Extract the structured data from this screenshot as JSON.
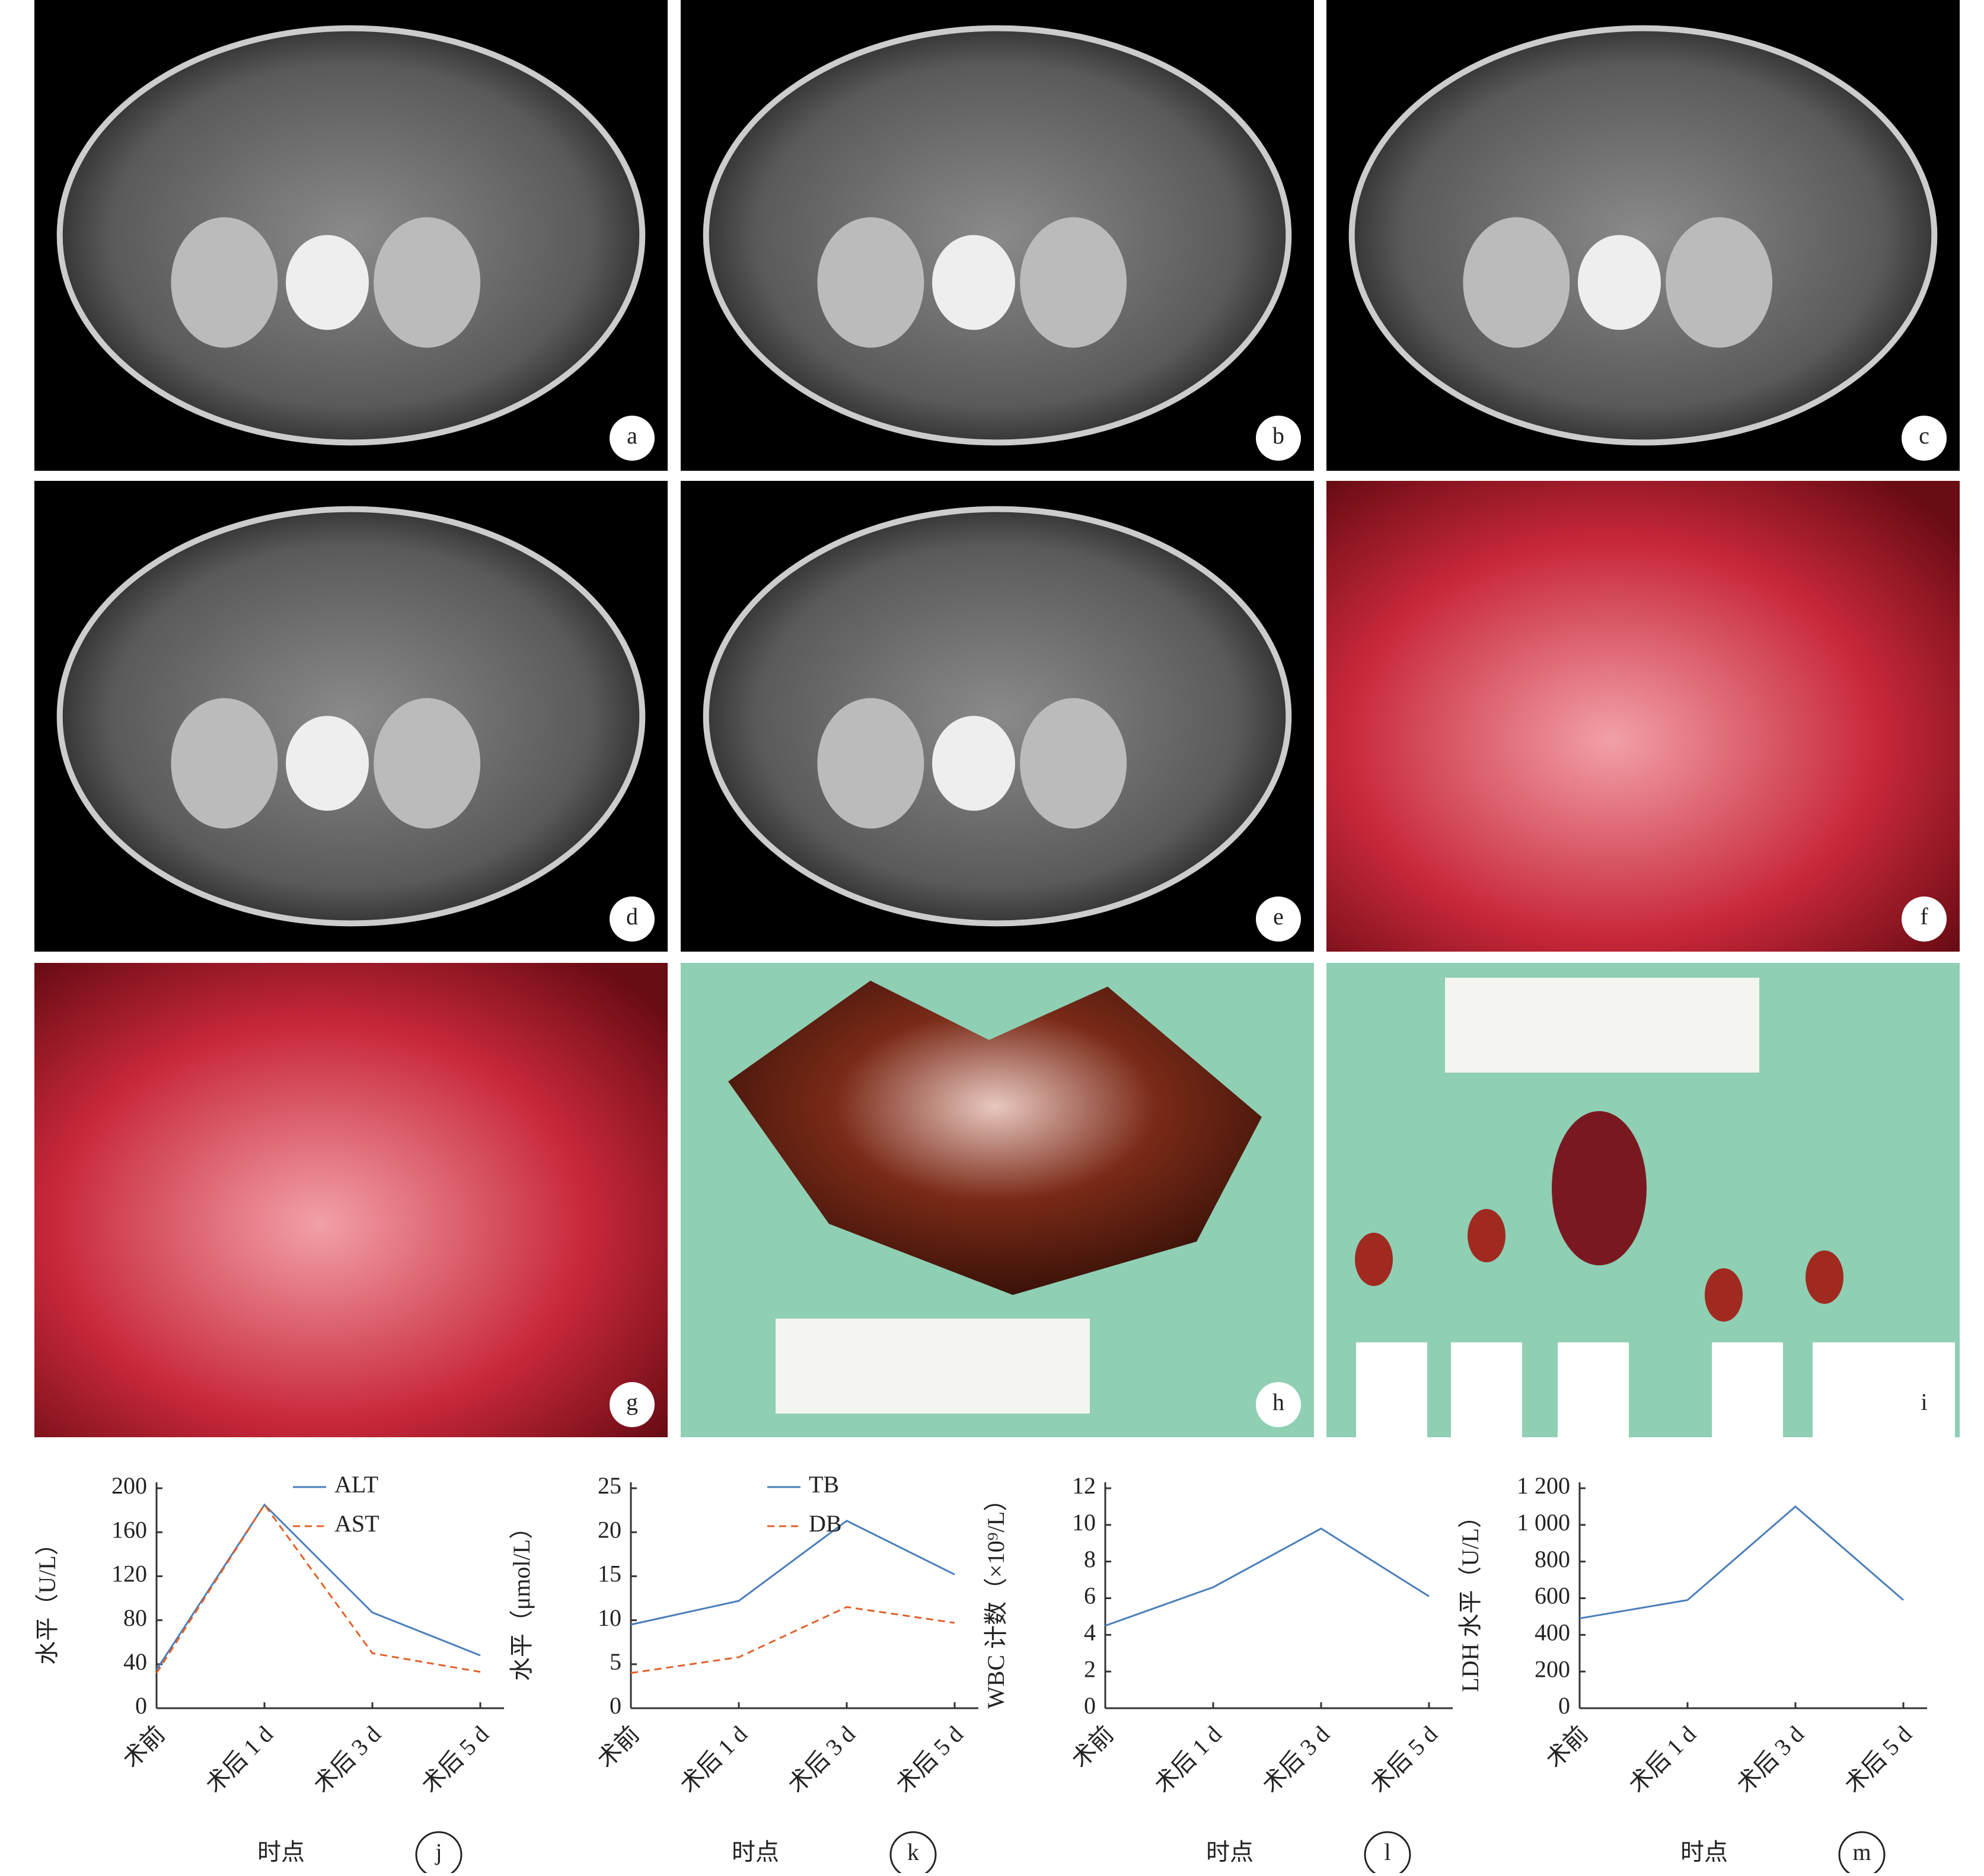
{
  "panels": [
    {
      "label": "a"
    },
    {
      "label": "b"
    },
    {
      "label": "c"
    },
    {
      "label": "d"
    },
    {
      "label": "e"
    },
    {
      "label": "f"
    },
    {
      "label": "g"
    },
    {
      "label": "h"
    },
    {
      "label": "i"
    }
  ],
  "chart_data": [
    {
      "type": "line",
      "panel_label": "j",
      "y_label": "水平（U/L）",
      "x_label": "时点",
      "categories": [
        "术前",
        "术后 1 d",
        "术后 3 d",
        "术后 5 d"
      ],
      "series": [
        {
          "name": "ALT",
          "color": "#4a7ebb",
          "dash": false,
          "values": [
            35,
            185,
            87,
            48
          ]
        },
        {
          "name": "AST",
          "color": "#e0622a",
          "dash": true,
          "values": [
            32,
            185,
            50,
            33
          ]
        }
      ],
      "ylim": [
        0,
        200
      ],
      "yticks": [
        0,
        40,
        80,
        120,
        160,
        200
      ]
    },
    {
      "type": "line",
      "panel_label": "k",
      "y_label": "水平（μmol/L）",
      "x_label": "时点",
      "categories": [
        "术前",
        "术后 1 d",
        "术后 3 d",
        "术后 5 d"
      ],
      "series": [
        {
          "name": "TB",
          "color": "#4a7ebb",
          "dash": false,
          "values": [
            9.5,
            12.2,
            21.3,
            15.2
          ]
        },
        {
          "name": "DB",
          "color": "#e0622a",
          "dash": true,
          "values": [
            4,
            5.8,
            11.5,
            9.7
          ]
        }
      ],
      "ylim": [
        0,
        25
      ],
      "yticks": [
        0,
        5,
        10,
        15,
        20,
        25
      ]
    },
    {
      "type": "line",
      "panel_label": "l",
      "y_label": "WBC 计数（×10⁹/L）",
      "x_label": "时点",
      "categories": [
        "术前",
        "术后 1 d",
        "术后 3 d",
        "术后 5 d"
      ],
      "series": [
        {
          "color": "#4a7ebb",
          "dash": false,
          "values": [
            4.5,
            6.6,
            9.8,
            6.1
          ]
        }
      ],
      "ylim": [
        0,
        12
      ],
      "yticks": [
        0,
        2,
        4,
        6,
        8,
        10,
        12
      ]
    },
    {
      "type": "line",
      "panel_label": "m",
      "y_label": "LDH 水平（U/L）",
      "x_label": "时点",
      "categories": [
        "术前",
        "术后 1 d",
        "术后 3 d",
        "术后 5 d"
      ],
      "series": [
        {
          "color": "#4a7ebb",
          "dash": false,
          "values": [
            490,
            590,
            1100,
            590
          ]
        }
      ],
      "ylim": [
        0,
        1200
      ],
      "yticks": [
        0,
        200,
        400,
        600,
        800,
        {
          "value": 1000,
          "label": "1 000"
        },
        {
          "value": 1200,
          "label": "1 200"
        }
      ]
    }
  ]
}
